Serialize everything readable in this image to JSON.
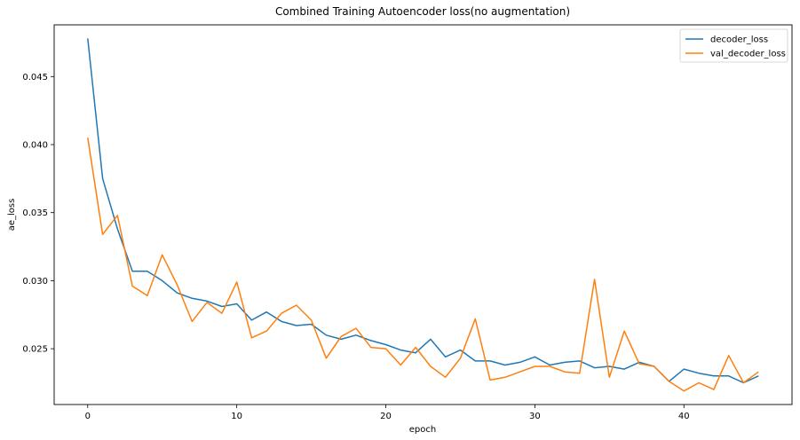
{
  "chart_data": {
    "type": "line",
    "title": "Combined Training Autoencoder loss(no augmentation)",
    "xlabel": "epoch",
    "ylabel": "ae_loss",
    "xlim": [
      -2.25,
      47.25
    ],
    "ylim": [
      0.0209,
      0.0488
    ],
    "xticks": [
      0,
      10,
      20,
      30,
      40
    ],
    "yticks": [
      0.025,
      0.03,
      0.035,
      0.04,
      0.045
    ],
    "ytick_labels": [
      "0.025",
      "0.030",
      "0.035",
      "0.040",
      "0.045"
    ],
    "grid": false,
    "legend_position": "top-right",
    "series": [
      {
        "name": "decoder_loss",
        "color": "#1f77b4",
        "x": [
          0,
          1,
          2,
          3,
          4,
          5,
          6,
          7,
          8,
          9,
          10,
          11,
          12,
          13,
          14,
          15,
          16,
          17,
          18,
          19,
          20,
          21,
          22,
          23,
          24,
          25,
          26,
          27,
          28,
          29,
          30,
          31,
          32,
          33,
          34,
          35,
          36,
          37,
          38,
          39,
          40,
          41,
          42,
          43,
          44,
          45
        ],
        "values": [
          0.0478,
          0.0375,
          0.0338,
          0.0307,
          0.0307,
          0.03,
          0.0291,
          0.0287,
          0.0285,
          0.0281,
          0.0283,
          0.0271,
          0.0277,
          0.027,
          0.0267,
          0.0268,
          0.026,
          0.0257,
          0.026,
          0.0256,
          0.0253,
          0.0249,
          0.0247,
          0.0257,
          0.0244,
          0.0249,
          0.0241,
          0.0241,
          0.0238,
          0.024,
          0.0244,
          0.0238,
          0.024,
          0.0241,
          0.0236,
          0.0237,
          0.0235,
          0.024,
          0.0237,
          0.0226,
          0.0235,
          0.0232,
          0.023,
          0.023,
          0.0225,
          0.023
        ]
      },
      {
        "name": "val_decoder_loss",
        "color": "#ff7f0e",
        "x": [
          0,
          1,
          2,
          3,
          4,
          5,
          6,
          7,
          8,
          9,
          10,
          11,
          12,
          13,
          14,
          15,
          16,
          17,
          18,
          19,
          20,
          21,
          22,
          23,
          24,
          25,
          26,
          27,
          28,
          29,
          30,
          31,
          32,
          33,
          34,
          35,
          36,
          37,
          38,
          39,
          40,
          41,
          42,
          43,
          44,
          45
        ],
        "values": [
          0.0405,
          0.0334,
          0.0348,
          0.0296,
          0.0289,
          0.0319,
          0.0297,
          0.027,
          0.0284,
          0.0276,
          0.0299,
          0.0258,
          0.0263,
          0.0276,
          0.0282,
          0.0271,
          0.0243,
          0.0259,
          0.0265,
          0.0251,
          0.025,
          0.0238,
          0.0251,
          0.0237,
          0.0229,
          0.0243,
          0.0272,
          0.0227,
          0.0229,
          0.0233,
          0.0237,
          0.0237,
          0.0233,
          0.0232,
          0.0301,
          0.0229,
          0.0263,
          0.0239,
          0.0237,
          0.0226,
          0.0219,
          0.0225,
          0.022,
          0.0245,
          0.0225,
          0.0233
        ]
      }
    ]
  }
}
